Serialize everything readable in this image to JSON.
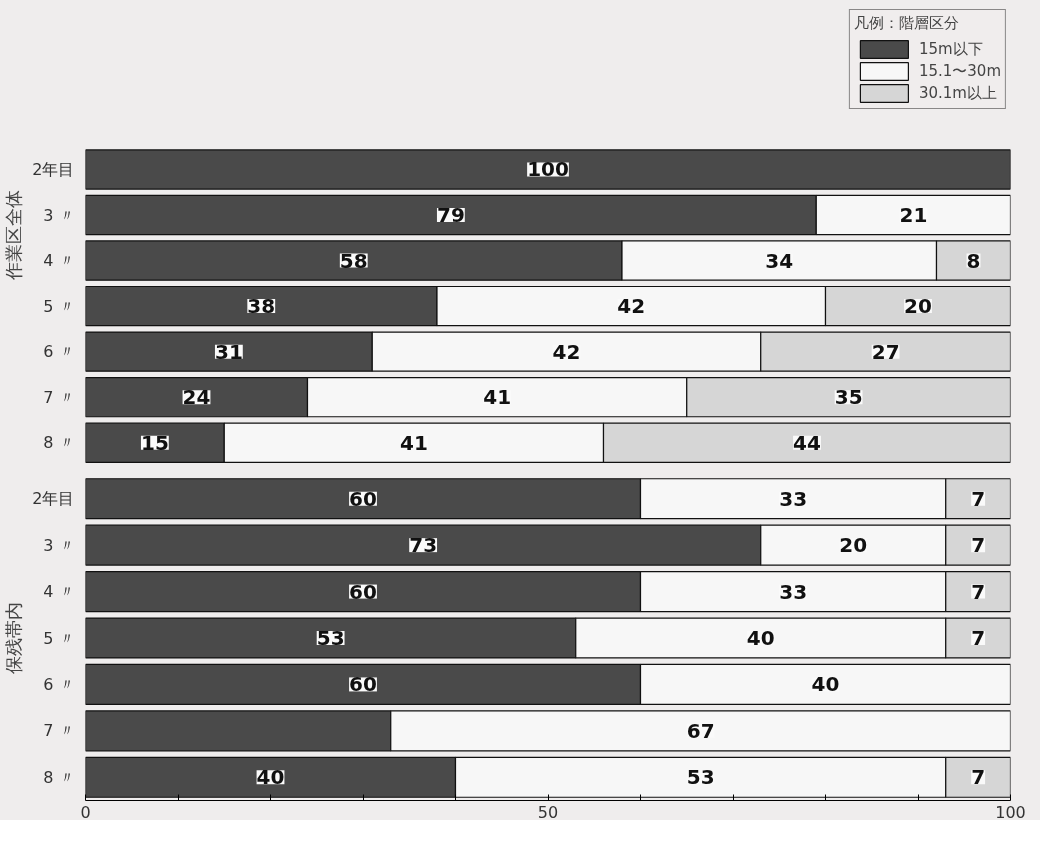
{
  "chart_data": [
    {
      "type": "bar",
      "orientation": "horizontal",
      "stacked": true,
      "ylabel": "作業区全体",
      "legend_title": "凡例：階層区分",
      "legend": "top right",
      "tick_labels": "y",
      "grid": false,
      "categories": [
        "2年目",
        "3 〃",
        "4 〃",
        "5 〃",
        "6 〃",
        "7 〃",
        "8 〃"
      ],
      "xlim": [
        0,
        100
      ],
      "series": [
        {
          "name": "15m以下",
          "color": "#4a4a4a",
          "values": [
            100,
            79,
            58,
            38,
            31,
            24,
            15
          ],
          "value_labels": [
            "100",
            "79",
            "58",
            "38",
            "31",
            "24",
            "15"
          ]
        },
        {
          "name": "15.1〜30m",
          "color": "#f7f7f7",
          "values": [
            null,
            21,
            34,
            42,
            42,
            41,
            41
          ],
          "value_labels": [
            null,
            "21",
            "34",
            "42",
            "42",
            "41",
            "41"
          ]
        },
        {
          "name": "30.1m以上",
          "color": "#d6d6d6",
          "values": [
            null,
            null,
            8,
            20,
            27,
            35,
            44
          ],
          "value_labels": [
            null,
            null,
            "8",
            "20",
            "27",
            "35",
            "44"
          ]
        }
      ]
    },
    {
      "type": "bar",
      "orientation": "horizontal",
      "stacked": true,
      "ylabel": "保残帯内",
      "grid": false,
      "categories": [
        "2年目",
        "3 〃",
        "4 〃",
        "5 〃",
        "6 〃",
        "7 〃",
        "8 〃"
      ],
      "xlim": [
        0,
        100
      ],
      "xticks": [
        0,
        {
          "value": 10,
          "label": null
        },
        {
          "value": 20,
          "label": null
        },
        {
          "value": 30,
          "label": null
        },
        {
          "value": 40,
          "label": null
        },
        50,
        {
          "value": 60,
          "label": null
        },
        {
          "value": 70,
          "label": null
        },
        {
          "value": 80,
          "label": null
        },
        {
          "value": 90,
          "label": null
        },
        100
      ],
      "series": [
        {
          "color": "#4a4a4a",
          "values": [
            60,
            73,
            60,
            53,
            60,
            33,
            40
          ],
          "value_labels": [
            "60",
            "73",
            "60",
            "53",
            "60",
            null,
            "40"
          ]
        },
        {
          "color": "#f7f7f7",
          "values": [
            33,
            20,
            33,
            40,
            40,
            67,
            53
          ],
          "value_labels": [
            "33",
            "20",
            "33",
            "40",
            "40",
            "67",
            "53"
          ]
        },
        {
          "color": "#d6d6d6",
          "values": [
            7,
            7,
            7,
            7,
            null,
            null,
            7
          ],
          "value_labels": [
            "7",
            "7",
            "7",
            "7",
            null,
            null,
            "7"
          ]
        }
      ]
    }
  ]
}
